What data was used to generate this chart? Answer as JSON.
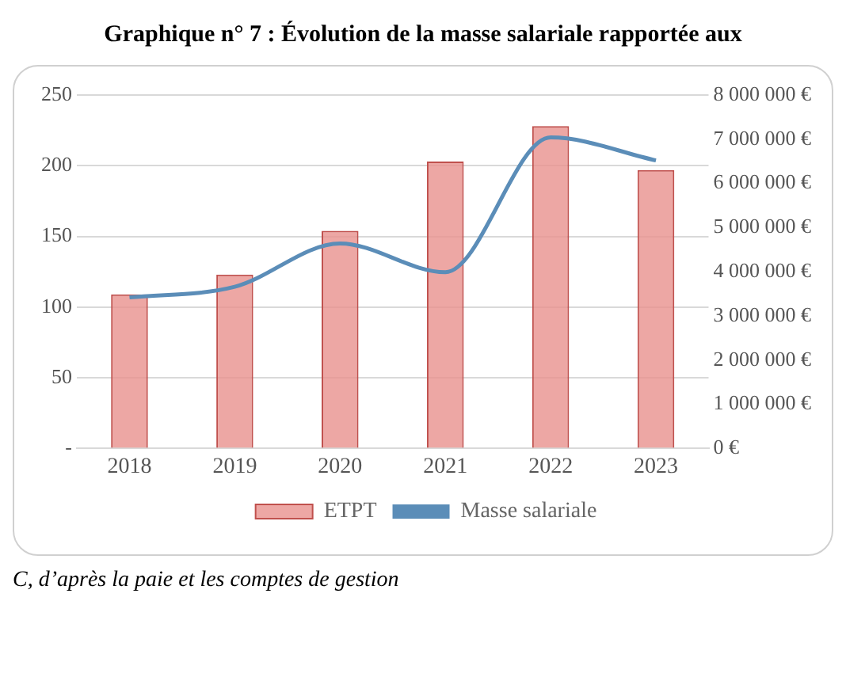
{
  "chart_data": {
    "type": "bar",
    "title": "Graphique n° 7 :  Évolution de la masse salariale rapportée aux",
    "categories": [
      "2018",
      "2019",
      "2020",
      "2021",
      "2022",
      "2023"
    ],
    "series": [
      {
        "name": "ETPT",
        "color": "#e8918d",
        "values": [
          109,
          123,
          154,
          203,
          228,
          197
        ]
      },
      {
        "name": "Masse salariale",
        "type": "line",
        "axis": "y2",
        "color": "#5b8db8",
        "values": [
          3420000,
          3660000,
          4640000,
          3990000,
          7040000,
          6520000
        ]
      }
    ],
    "ylim": [
      0,
      250
    ],
    "yticks": [
      {
        "value": 0,
        "label": "-"
      },
      50,
      100,
      150,
      200,
      250
    ],
    "y2lim": [
      0,
      8000000
    ],
    "y2ticks": [
      {
        "value": 0,
        "label": "0 €"
      },
      {
        "value": 1000000,
        "label": "1 000 000 €"
      },
      {
        "value": 2000000,
        "label": "2 000 000 €"
      },
      {
        "value": 3000000,
        "label": "3 000 000 €"
      },
      {
        "value": 4000000,
        "label": "4 000 000 €"
      },
      {
        "value": 5000000,
        "label": "5 000 000 €"
      },
      {
        "value": 6000000,
        "label": "6 000 000 €"
      },
      {
        "value": 7000000,
        "label": "7 000 000 €"
      },
      {
        "value": 8000000,
        "label": "8 000 000 €"
      }
    ],
    "grid": "y",
    "legend": "bottom",
    "marker": "none",
    "annotations": [
      "C, d’après la paie et les comptes de gestion"
    ]
  }
}
